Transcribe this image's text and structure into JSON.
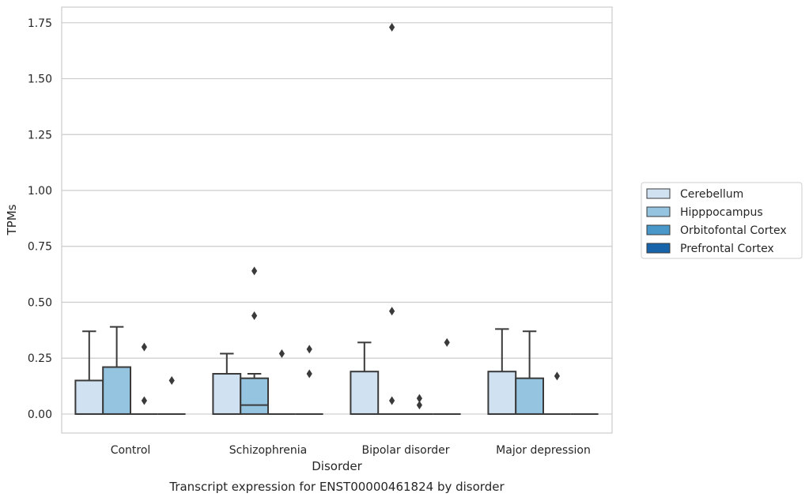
{
  "chart_data": {
    "type": "box",
    "title": "Transcript expression for ENST00000461824 by disorder",
    "xlabel": "Disorder",
    "ylabel": "TPMs",
    "ylim": [
      -0.085,
      1.82
    ],
    "yticks": [
      0.0,
      0.25,
      0.5,
      0.75,
      1.0,
      1.25,
      1.5,
      1.75
    ],
    "ytick_labels": [
      "0.00",
      "0.25",
      "0.50",
      "0.75",
      "1.00",
      "1.25",
      "1.50",
      "1.75"
    ],
    "grid": true,
    "legend_position": "right",
    "categories": [
      "Control",
      "Schizophrenia",
      "Bipolar disorder",
      "Major depression"
    ],
    "series": [
      {
        "name": "Cerebellum",
        "color": "#d0e1f2",
        "boxes": [
          {
            "q1": 0.0,
            "median": 0.0,
            "q3": 0.15,
            "whisker_low": 0.0,
            "whisker_high": 0.37,
            "outliers": []
          },
          {
            "q1": 0.0,
            "median": 0.0,
            "q3": 0.18,
            "whisker_low": 0.0,
            "whisker_high": 0.27,
            "outliers": []
          },
          {
            "q1": 0.0,
            "median": 0.0,
            "q3": 0.19,
            "whisker_low": 0.0,
            "whisker_high": 0.32,
            "outliers": []
          },
          {
            "q1": 0.0,
            "median": 0.0,
            "q3": 0.19,
            "whisker_low": 0.0,
            "whisker_high": 0.38,
            "outliers": []
          }
        ]
      },
      {
        "name": "Hipppocampus",
        "color": "#94c4df",
        "boxes": [
          {
            "q1": 0.0,
            "median": 0.0,
            "q3": 0.21,
            "whisker_low": 0.0,
            "whisker_high": 0.39,
            "outliers": []
          },
          {
            "q1": 0.0,
            "median": 0.04,
            "q3": 0.16,
            "whisker_low": 0.0,
            "whisker_high": 0.18,
            "outliers": [
              0.44,
              0.64
            ]
          },
          {
            "q1": 0.0,
            "median": 0.0,
            "q3": 0.0,
            "whisker_low": 0.0,
            "whisker_high": 0.0,
            "outliers": [
              0.06,
              0.46,
              1.73
            ]
          },
          {
            "q1": 0.0,
            "median": 0.0,
            "q3": 0.16,
            "whisker_low": 0.0,
            "whisker_high": 0.37,
            "outliers": []
          }
        ]
      },
      {
        "name": "Orbitofontal Cortex",
        "color": "#4a98c9",
        "boxes": [
          {
            "q1": 0.0,
            "median": 0.0,
            "q3": 0.0,
            "whisker_low": 0.0,
            "whisker_high": 0.0,
            "outliers": [
              0.06,
              0.3
            ]
          },
          {
            "q1": 0.0,
            "median": 0.0,
            "q3": 0.0,
            "whisker_low": 0.0,
            "whisker_high": 0.0,
            "outliers": [
              0.27
            ]
          },
          {
            "q1": 0.0,
            "median": 0.0,
            "q3": 0.0,
            "whisker_low": 0.0,
            "whisker_high": 0.0,
            "outliers": [
              0.04,
              0.07
            ]
          },
          {
            "q1": 0.0,
            "median": 0.0,
            "q3": 0.0,
            "whisker_low": 0.0,
            "whisker_high": 0.0,
            "outliers": [
              0.17
            ]
          }
        ]
      },
      {
        "name": "Prefrontal Cortex",
        "color": "#1764ab",
        "boxes": [
          {
            "q1": 0.0,
            "median": 0.0,
            "q3": 0.0,
            "whisker_low": 0.0,
            "whisker_high": 0.0,
            "outliers": [
              0.15
            ]
          },
          {
            "q1": 0.0,
            "median": 0.0,
            "q3": 0.0,
            "whisker_low": 0.0,
            "whisker_high": 0.0,
            "outliers": [
              0.18,
              0.29
            ]
          },
          {
            "q1": 0.0,
            "median": 0.0,
            "q3": 0.0,
            "whisker_low": 0.0,
            "whisker_high": 0.0,
            "outliers": [
              0.32
            ]
          },
          {
            "q1": 0.0,
            "median": 0.0,
            "q3": 0.0,
            "whisker_low": 0.0,
            "whisker_high": 0.0,
            "outliers": []
          }
        ]
      }
    ]
  }
}
